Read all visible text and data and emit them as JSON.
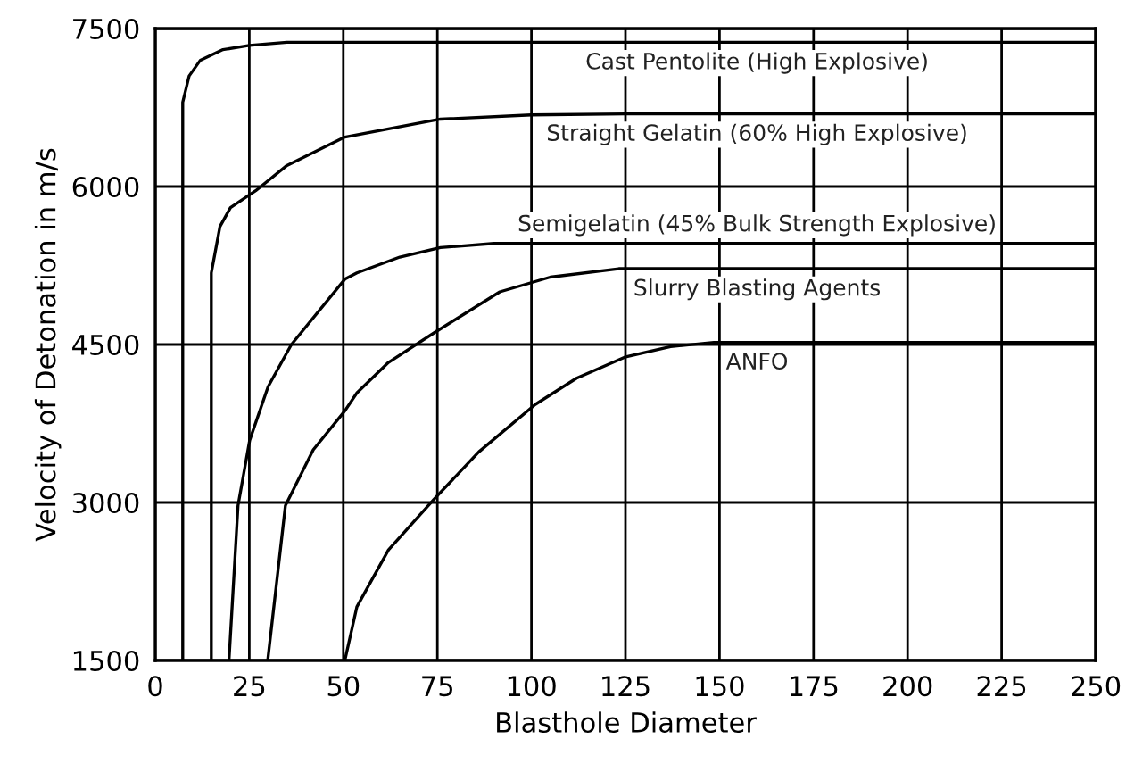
{
  "chart_data": {
    "type": "line",
    "xlabel": "Blasthole Diameter",
    "ylabel": "Velocity of Detonation in m/s",
    "xlim": [
      0,
      250
    ],
    "xticks": [
      0,
      25,
      50,
      75,
      100,
      125,
      150,
      175,
      200,
      225,
      250
    ],
    "ylim": [
      1500,
      7500
    ],
    "yticks": [
      1500,
      3000,
      4500,
      6000,
      7500
    ],
    "grid": true,
    "legend": false,
    "marker": "none",
    "line_style": "solid",
    "series": [
      {
        "name": "Cast Pentolite (High Explosive)",
        "color": "#000000",
        "x": [
          7.3,
          7.3,
          9,
          12,
          18,
          25,
          35,
          250
        ],
        "values": [
          1500,
          6800,
          7050,
          7200,
          7300,
          7340,
          7370,
          7370
        ]
      },
      {
        "name": "Straight Gelatin (60% High Explosive)",
        "color": "#000000",
        "x": [
          14.9,
          14.9,
          17.2,
          20,
          26.7,
          35,
          50.4,
          75.8,
          100,
          125,
          250
        ],
        "values": [
          1500,
          5180,
          5620,
          5800,
          5960,
          6200,
          6470,
          6640,
          6680,
          6690,
          6690
        ]
      },
      {
        "name": "Semigelatin (45% Bulk Strength Explosive)",
        "color": "#000000",
        "x": [
          19.6,
          22,
          25.1,
          30,
          36.2,
          50.4,
          53.6,
          65,
          75.8,
          90,
          250
        ],
        "values": [
          1500,
          2970,
          3590,
          4100,
          4500,
          5120,
          5180,
          5330,
          5420,
          5460,
          5460
        ]
      },
      {
        "name": "Slurry Blasting Agents",
        "color": "#000000",
        "x": [
          29.9,
          34.6,
          42,
          50.4,
          53.6,
          62,
          74.1,
          91.6,
          105,
          123.2,
          250
        ],
        "values": [
          1500,
          2970,
          3500,
          3870,
          4040,
          4330,
          4610,
          5000,
          5140,
          5220,
          5220
        ]
      },
      {
        "name": "ANFO",
        "color": "#000000",
        "x": [
          50.4,
          53.6,
          62,
          74.1,
          86,
          101,
          112,
          124.8,
          137,
          148.5,
          250
        ],
        "values": [
          1500,
          2010,
          2550,
          3030,
          3480,
          3930,
          4180,
          4380,
          4480,
          4520,
          4520
        ]
      }
    ]
  }
}
